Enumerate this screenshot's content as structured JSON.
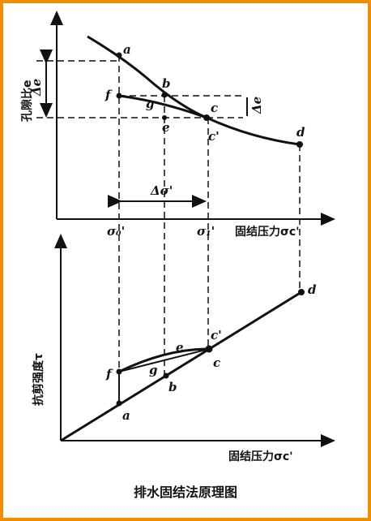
{
  "top": {
    "y_axis_label": "孔隙比e",
    "x_axis_label": "固结压力σc'",
    "delta_left": "Δe",
    "delta_right": "Δe",
    "delta_sigma": "Δσ'",
    "x_marks": [
      "σ₀'",
      "σ₁'"
    ],
    "points": [
      "a",
      "b",
      "c",
      "c'",
      "d",
      "e",
      "f",
      "g"
    ]
  },
  "bottom": {
    "y_axis_label": "抗剪强度τ",
    "x_axis_label": "固结压力σc'",
    "points": [
      "a",
      "b",
      "c",
      "c'",
      "d",
      "e",
      "f",
      "g"
    ]
  },
  "caption": "排水固结法原理图"
}
